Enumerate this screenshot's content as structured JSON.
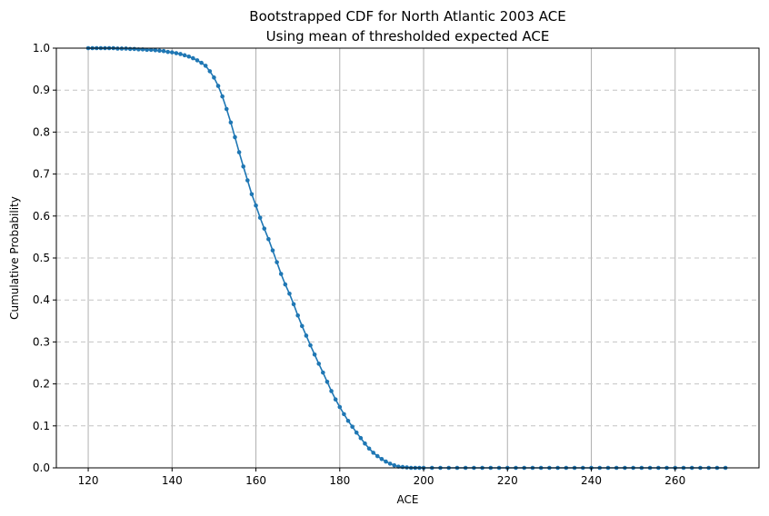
{
  "chart_data": {
    "type": "line",
    "title": "Bootstrapped CDF for North Atlantic 2003 ACE",
    "subtitle": "Using mean of thresholded expected ACE",
    "xlabel": "ACE",
    "ylabel": "Cumulative Probability",
    "xlim": [
      112.4,
      280.0
    ],
    "ylim": [
      0,
      1
    ],
    "x_ticks": [
      120,
      140,
      160,
      180,
      200,
      220,
      240,
      260
    ],
    "y_ticks": [
      0.0,
      0.1,
      0.2,
      0.3,
      0.4,
      0.5,
      0.6,
      0.7,
      0.8,
      0.9,
      1.0
    ],
    "x_tick_labels": [
      "120",
      "140",
      "160",
      "180",
      "200",
      "220",
      "240",
      "260"
    ],
    "y_tick_labels": [
      "0.0",
      "0.1",
      "0.2",
      "0.3",
      "0.4",
      "0.5",
      "0.6",
      "0.7",
      "0.8",
      "0.9",
      "1.0"
    ],
    "grid": {
      "x": "solid",
      "y": "dashed"
    },
    "marker": "circle",
    "color": "#1f77b4",
    "series": [
      {
        "x": [
          120,
          121,
          122,
          123,
          124,
          125,
          126,
          127,
          128,
          129,
          130,
          131,
          132,
          133,
          134,
          135,
          136,
          137,
          138,
          139,
          140,
          141,
          142,
          143,
          144,
          145,
          146,
          147,
          148,
          149,
          150,
          151,
          152,
          153,
          154,
          155,
          156,
          157,
          158,
          159,
          160,
          161,
          162,
          163,
          164,
          165,
          166,
          167,
          168,
          169,
          170,
          171,
          172,
          173,
          174,
          175,
          176,
          177,
          178,
          179,
          180,
          181,
          182,
          183,
          184,
          185,
          186,
          187,
          188,
          189,
          190,
          191,
          192,
          193,
          194,
          195,
          196,
          197,
          198,
          199,
          200,
          202,
          204,
          206,
          208,
          210,
          212,
          214,
          216,
          218,
          220,
          222,
          224,
          226,
          228,
          230,
          232,
          234,
          236,
          238,
          240,
          242,
          244,
          246,
          248,
          250,
          252,
          254,
          256,
          258,
          260,
          262,
          264,
          266,
          268,
          270,
          272
        ],
        "y": [
          1.0,
          1.0,
          1.0,
          1.0,
          1.0,
          1.0,
          1.0,
          0.999,
          0.999,
          0.999,
          0.998,
          0.998,
          0.997,
          0.997,
          0.996,
          0.996,
          0.995,
          0.994,
          0.993,
          0.991,
          0.99,
          0.988,
          0.986,
          0.983,
          0.98,
          0.976,
          0.971,
          0.965,
          0.958,
          0.945,
          0.93,
          0.91,
          0.885,
          0.855,
          0.823,
          0.788,
          0.752,
          0.718,
          0.685,
          0.652,
          0.625,
          0.596,
          0.57,
          0.545,
          0.518,
          0.49,
          0.462,
          0.437,
          0.415,
          0.39,
          0.363,
          0.338,
          0.315,
          0.292,
          0.27,
          0.248,
          0.227,
          0.205,
          0.183,
          0.163,
          0.145,
          0.128,
          0.112,
          0.098,
          0.084,
          0.071,
          0.058,
          0.046,
          0.036,
          0.028,
          0.021,
          0.015,
          0.01,
          0.006,
          0.003,
          0.002,
          0.001,
          0.0,
          0.0,
          0.0,
          0.0,
          0.0,
          0.0,
          0.0,
          0.0,
          0.0,
          0.0,
          0.0,
          0.0,
          0.0,
          0.0,
          0.0,
          0.0,
          0.0,
          0.0,
          0.0,
          0.0,
          0.0,
          0.0,
          0.0,
          0.0,
          0.0,
          0.0,
          0.0,
          0.0,
          0.0,
          0.0,
          0.0,
          0.0,
          0.0,
          0.0,
          0.0,
          0.0,
          0.0,
          0.0,
          0.0,
          0.0
        ]
      }
    ]
  }
}
